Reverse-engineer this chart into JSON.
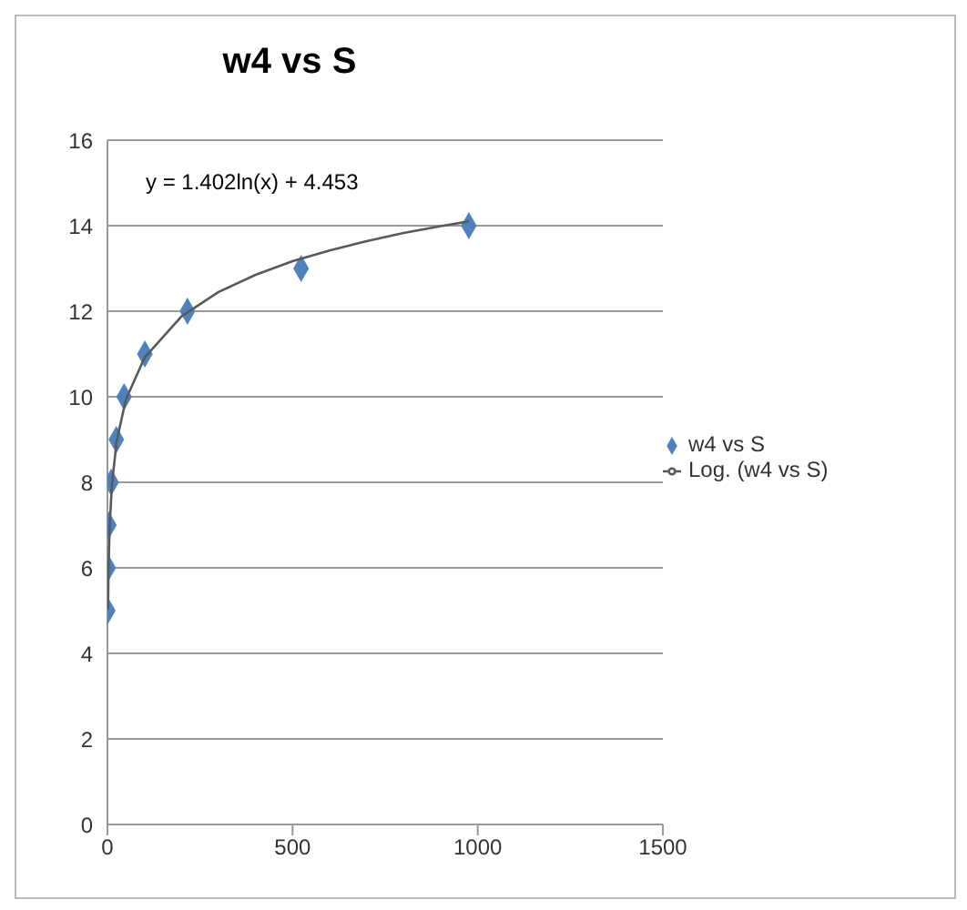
{
  "chart_data": {
    "type": "scatter",
    "title": "w4 vs S",
    "xlim": [
      0,
      1500
    ],
    "xticks": [
      0,
      500,
      1000,
      1500
    ],
    "ylim": [
      0,
      16
    ],
    "yticks": [
      0,
      2,
      4,
      6,
      8,
      10,
      12,
      14,
      16
    ],
    "grid": "y",
    "legend": "right",
    "marker": "diamond",
    "annotations": [
      "y = 1.402ln(x) + 4.453"
    ],
    "series": [
      {
        "name": "w4 vs S",
        "color": "#4f81bd",
        "x": [
          1,
          2,
          4,
          10,
          24,
          45,
          101,
          216,
          523,
          976
        ],
        "values": [
          5,
          6,
          7,
          8,
          9,
          10,
          11,
          12,
          13,
          14
        ]
      },
      {
        "name": "Log. (w4 vs S)",
        "type": "line",
        "color": "#595959",
        "line_style": "solid",
        "marker": "none",
        "x": [
          1.5,
          3,
          6,
          12,
          25,
          50,
          100,
          200,
          300,
          400,
          500,
          600,
          700,
          800,
          900,
          976
        ],
        "values": [
          5.02,
          5.99,
          6.97,
          7.94,
          8.97,
          9.94,
          10.91,
          11.88,
          12.45,
          12.85,
          13.17,
          13.42,
          13.64,
          13.83,
          13.99,
          14.1
        ]
      }
    ]
  }
}
